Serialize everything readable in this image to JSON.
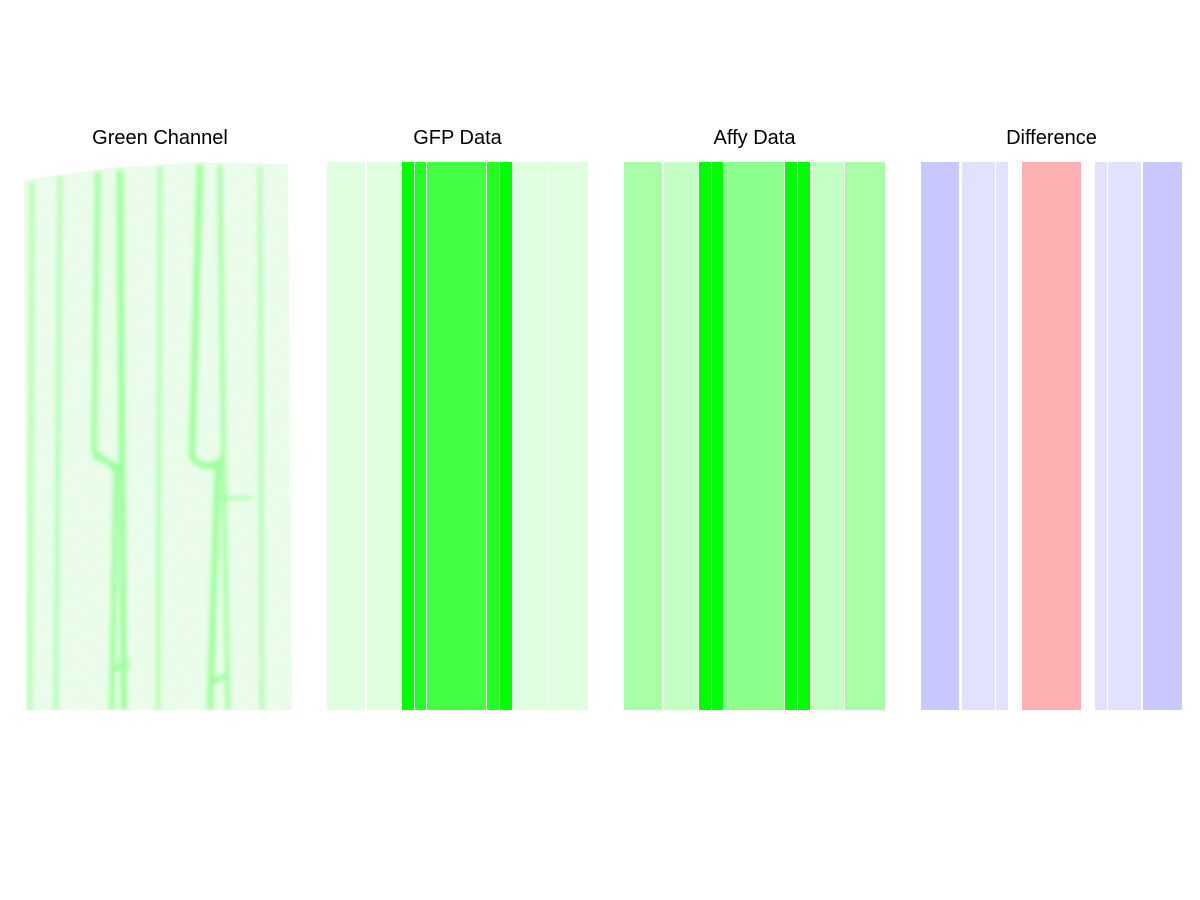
{
  "panels": {
    "green_channel": {
      "title": "Green Channel"
    },
    "gfp_data": {
      "title": "GFP Data",
      "cells": [
        {
          "name": "cell-1",
          "color": "#e0ffe0"
        },
        {
          "name": "cell-2",
          "color": "#e0ffe0"
        },
        {
          "name": "cell-3",
          "color": "#00ff00"
        },
        {
          "name": "cell-4",
          "color": "#22ff22"
        },
        {
          "name": "cell-5",
          "color": "#44ff44"
        },
        {
          "name": "cell-6",
          "color": "#22ff22"
        },
        {
          "name": "cell-7",
          "color": "#00ff00"
        },
        {
          "name": "cell-8",
          "color": "#e0ffe0"
        },
        {
          "name": "cell-9",
          "color": "#e0ffe0"
        }
      ]
    },
    "affy_data": {
      "title": "Affy Data",
      "cells": [
        {
          "name": "cell-1",
          "color": "#a8ffa8"
        },
        {
          "name": "cell-2",
          "color": "#c4ffc4"
        },
        {
          "name": "cell-3",
          "color": "#00ff00"
        },
        {
          "name": "cell-4",
          "color": "#00ff00"
        },
        {
          "name": "cell-5",
          "color": "#8cff8c"
        },
        {
          "name": "cell-6",
          "color": "#00ff00"
        },
        {
          "name": "cell-7",
          "color": "#00ff00"
        },
        {
          "name": "cell-8",
          "color": "#c4ffc4"
        },
        {
          "name": "cell-9",
          "color": "#a8ffa8"
        }
      ]
    },
    "difference": {
      "title": "Difference",
      "cells": [
        {
          "name": "cell-1",
          "color": "#c8c8ff"
        },
        {
          "name": "cell-2",
          "color": "#e2e2ff"
        },
        {
          "name": "cell-3",
          "color": "#e2e2ff"
        },
        {
          "name": "cell-4",
          "color": "#ffffff"
        },
        {
          "name": "cell-5",
          "color": "#ffb0b0"
        },
        {
          "name": "cell-6",
          "color": "#ffffff"
        },
        {
          "name": "cell-7",
          "color": "#e2e2ff"
        },
        {
          "name": "cell-8",
          "color": "#e2e2ff"
        },
        {
          "name": "cell-9",
          "color": "#c8c8ff"
        }
      ]
    }
  }
}
